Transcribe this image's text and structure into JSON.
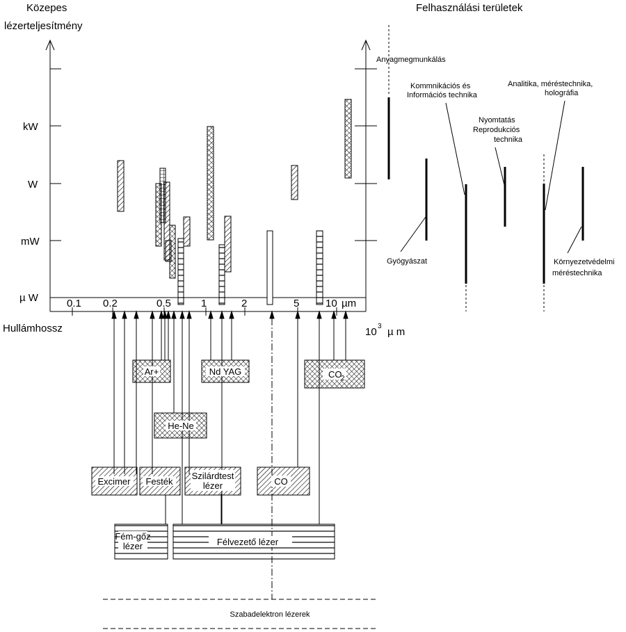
{
  "title_left": [
    "Közepes",
    "lézerteljesítmény"
  ],
  "title_right": "Felhasználási területek",
  "y_ticks": [
    "kW",
    "W",
    "mW",
    "µ W"
  ],
  "x_ticks": [
    "0.1",
    "0.2",
    "0.5",
    "1",
    "2",
    "5",
    "10",
    "µm"
  ],
  "x_axis_label": "Hullámhossz",
  "x_axis_far_label": [
    "10",
    "3",
    "µ m"
  ],
  "laser_types": {
    "ar": "Ar+",
    "nd_yag": "Nd YAG",
    "co2": [
      "CO",
      "2"
    ],
    "he_ne": "He-Ne",
    "excimer": "Excimer",
    "festek": "Festék",
    "szilardtest": [
      "Szilárdtest",
      "lézer"
    ],
    "co": "CO",
    "fem_goz": [
      "Fém-gőz",
      "lézer"
    ],
    "felvezeto": "Félvezető lézer",
    "szabadelektron": "Szabadelektron lézerek"
  },
  "applications": {
    "anyag": "Anyagmegmunkálás",
    "komm": [
      "Kommnikációs és",
      "Információs technika"
    ],
    "analitika": [
      "Analitika, méréstechnika,",
      "holográfia"
    ],
    "nyomtatas": [
      "Nyomtatás",
      "Reprodukciós",
      "technika"
    ],
    "gyogy": "Gyógyászat",
    "kornyezet": [
      "Környezetvédelmi",
      "méréstechnika"
    ]
  }
}
